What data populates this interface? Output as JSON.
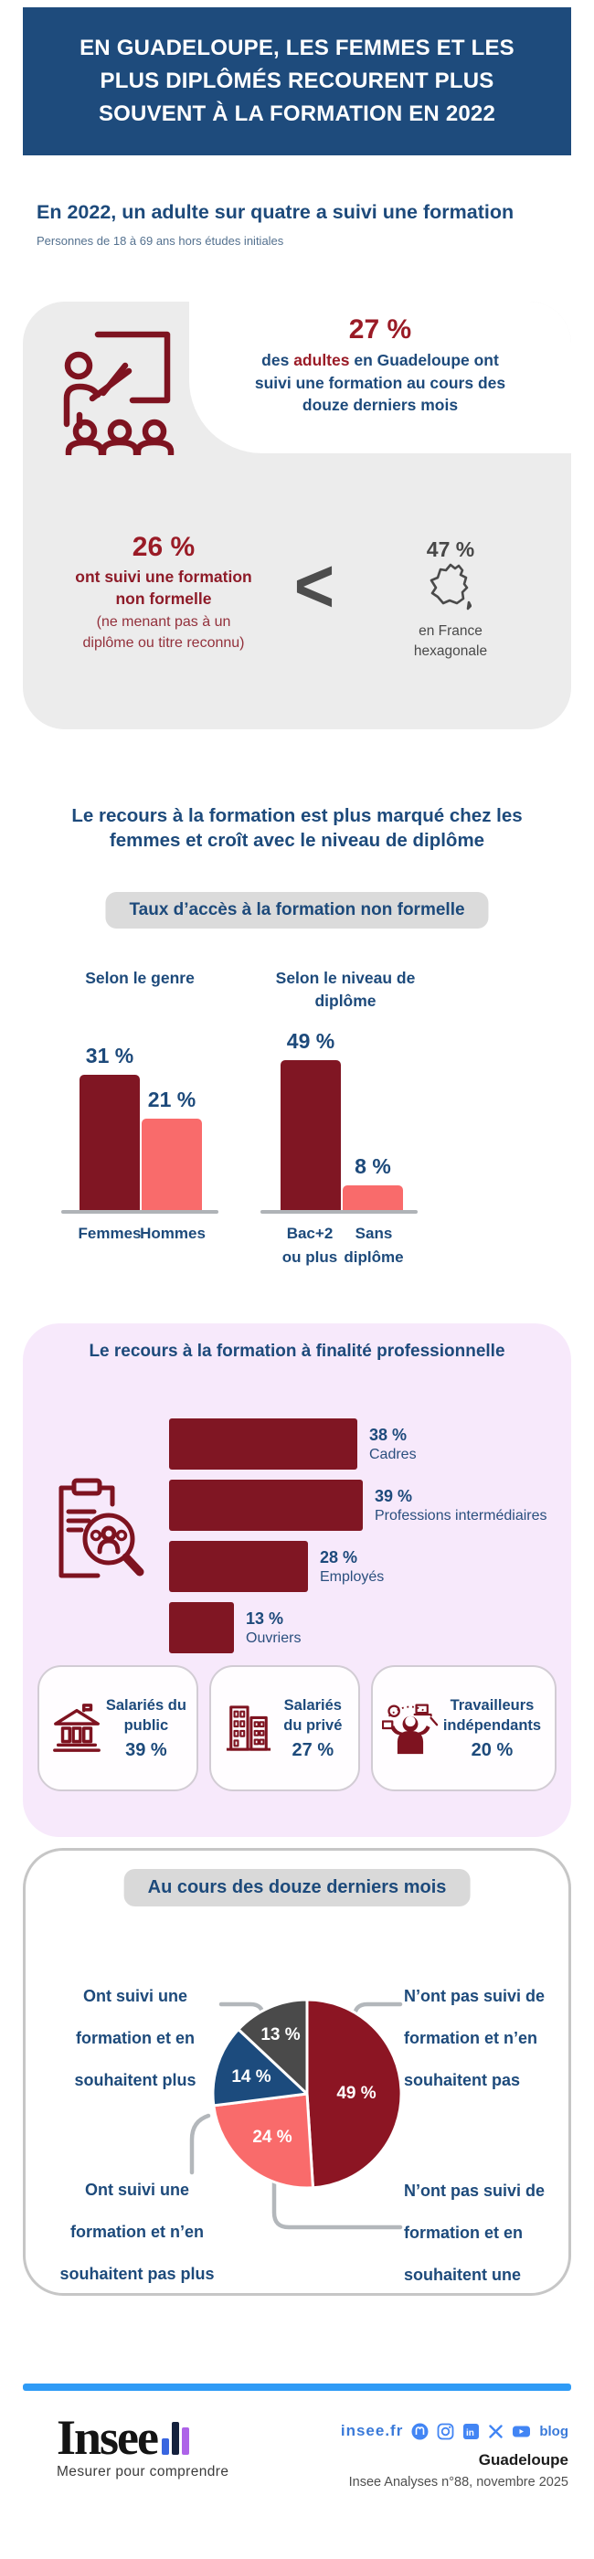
{
  "colors": {
    "navy": "#1E4B7C",
    "maroon": "#801623",
    "maroon_bright": "#9A1B26",
    "salmon": "#F96B6B",
    "pie_gray": "#4A4A4A",
    "box_gray": "#ECECEC",
    "lavender": "#F7E9FB",
    "pill_gray": "#DBDBDB",
    "footer_blue": "#2F9BF6",
    "link_blue": "#3A7AD9"
  },
  "header": {
    "title": "EN GUADELOUPE, LES FEMMES ET LES PLUS DIPLÔMÉS RECOURENT PLUS SOUVENT À LA FORMATION EN 2022"
  },
  "intro": {
    "heading": "En 2022, un adulte sur quatre a suivi une formation",
    "subheading": "Personnes de 18 à 69 ans hors études initiales"
  },
  "stat_box": {
    "main": {
      "value": "27 %",
      "text_pre": "des ",
      "text_highlight": "adultes",
      "text_post": " en Guadeloupe ont suivi une formation au cours des douze derniers mois"
    },
    "left": {
      "value": "26 %",
      "bold_text": "ont suivi une formation non formelle",
      "note": "(ne menant pas à un diplôme ou titre reconnu)"
    },
    "compare_symbol": "<",
    "right": {
      "value": "47 %",
      "caption": "en France hexagonale"
    }
  },
  "sections": {
    "access": {
      "heading": "Le recours à la formation est plus marqué chez les femmes et croît avec le niveau de diplôme",
      "badge": "Taux d’accès à la formation non formelle"
    },
    "pro": {
      "cards": [
        {
          "icon": "bank-icon",
          "label": "Salariés du public",
          "value": "39 %"
        },
        {
          "icon": "buildings-icon",
          "label": "Salariés du privé",
          "value": "27 %"
        },
        {
          "icon": "freelancer-icon",
          "label": "Travailleurs indépendants",
          "value": "20 %"
        }
      ]
    }
  },
  "chart_data": [
    {
      "id": "access-by-gender",
      "type": "bar",
      "title": "Selon le genre",
      "unit": "percent",
      "categories": [
        "Femmes",
        "Hommes"
      ],
      "values": [
        31,
        21
      ],
      "value_labels": [
        "31 %",
        "21 %"
      ],
      "colors": [
        "#801623",
        "#F96B6B"
      ],
      "ylim": [
        0,
        49
      ],
      "grid": false,
      "legend": "none"
    },
    {
      "id": "access-by-diploma",
      "type": "bar",
      "title": "Selon le niveau de diplôme",
      "unit": "percent",
      "categories": [
        "Bac+2 ou plus",
        "Sans diplôme"
      ],
      "values": [
        49,
        8
      ],
      "value_labels": [
        "49 %",
        "8 %"
      ],
      "colors": [
        "#801623",
        "#F96B6B"
      ],
      "ylim": [
        0,
        49
      ],
      "grid": false,
      "legend": "none"
    },
    {
      "id": "training-by-occupation",
      "type": "bar",
      "orientation": "horizontal",
      "title": "Le recours à la formation à finalité professionnelle",
      "unit": "percent",
      "categories": [
        "Cadres",
        "Professions intermédiaires",
        "Employés",
        "Ouvriers"
      ],
      "values": [
        38,
        39,
        28,
        13
      ],
      "value_labels": [
        "38 %",
        "39 %",
        "28 %",
        "13 %"
      ],
      "color": "#801623",
      "grid": false,
      "legend": "none"
    },
    {
      "id": "training-wishes",
      "type": "pie",
      "title": "Au cours des douze derniers mois",
      "unit": "percent",
      "slices": [
        {
          "label": "N’ont pas suivi de formation et n’en souhaitent pas",
          "value": 49,
          "value_label": "49 %",
          "color": "#8C1523"
        },
        {
          "label": "N’ont pas suivi de formation et en souhaitent une",
          "value": 24,
          "value_label": "24 %",
          "color": "#F96B6B"
        },
        {
          "label": "Ont suivi une formation et n’en souhaitent pas plus",
          "value": 14,
          "value_label": "14 %",
          "color": "#1C4B7D"
        },
        {
          "label": "Ont suivi une formation et en souhaitent plus",
          "value": 13,
          "value_label": "13 %",
          "color": "#4A4A4A"
        }
      ]
    }
  ],
  "footer": {
    "brand": "Insee",
    "tagline": "Mesurer pour comprendre",
    "site": "insee.fr",
    "social": [
      "mastodon",
      "instagram",
      "linkedin",
      "x",
      "youtube"
    ],
    "blog_label": "blog",
    "region": "Guadeloupe",
    "publication": "Insee Analyses n°88, novembre 2025"
  }
}
